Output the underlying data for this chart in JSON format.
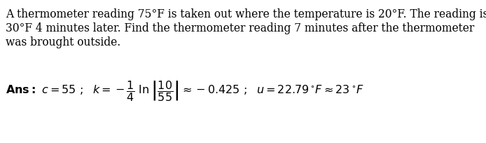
{
  "bg_color": "#ffffff",
  "text_color": "#000000",
  "problem_line1": "A thermometer reading 75°F is taken out where the temperature is 20°F. The reading is",
  "problem_line2": "30°F 4 minutes later. Find the thermometer reading 7 minutes after the thermometer",
  "problem_line3": "was brought outside.",
  "fig_width": 6.94,
  "fig_height": 2.04,
  "dpi": 100,
  "font_size_problem": 11.2,
  "font_size_ans": 11.5
}
